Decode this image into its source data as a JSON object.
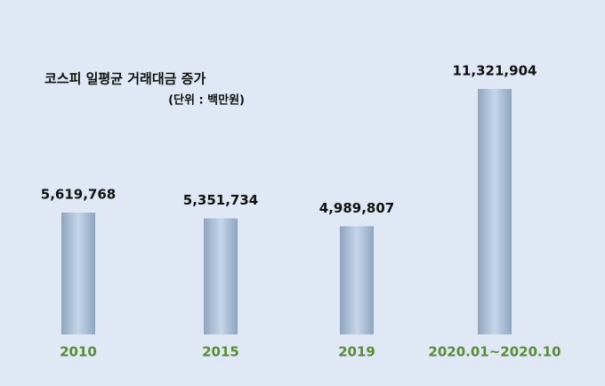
{
  "chart_data": {
    "type": "bar",
    "title": "코스피 일평균 거래대금 증가",
    "subtitle": "(단위 : 백만원)",
    "categories": [
      "2010",
      "2015",
      "2019",
      "2020.01~2020.10"
    ],
    "values": [
      5619768,
      5351734,
      4989807,
      11321904
    ],
    "value_labels": [
      "5,619,768",
      "5,351,734",
      "4,989,807",
      "11,321,904"
    ],
    "color": "#c4d6ea"
  }
}
